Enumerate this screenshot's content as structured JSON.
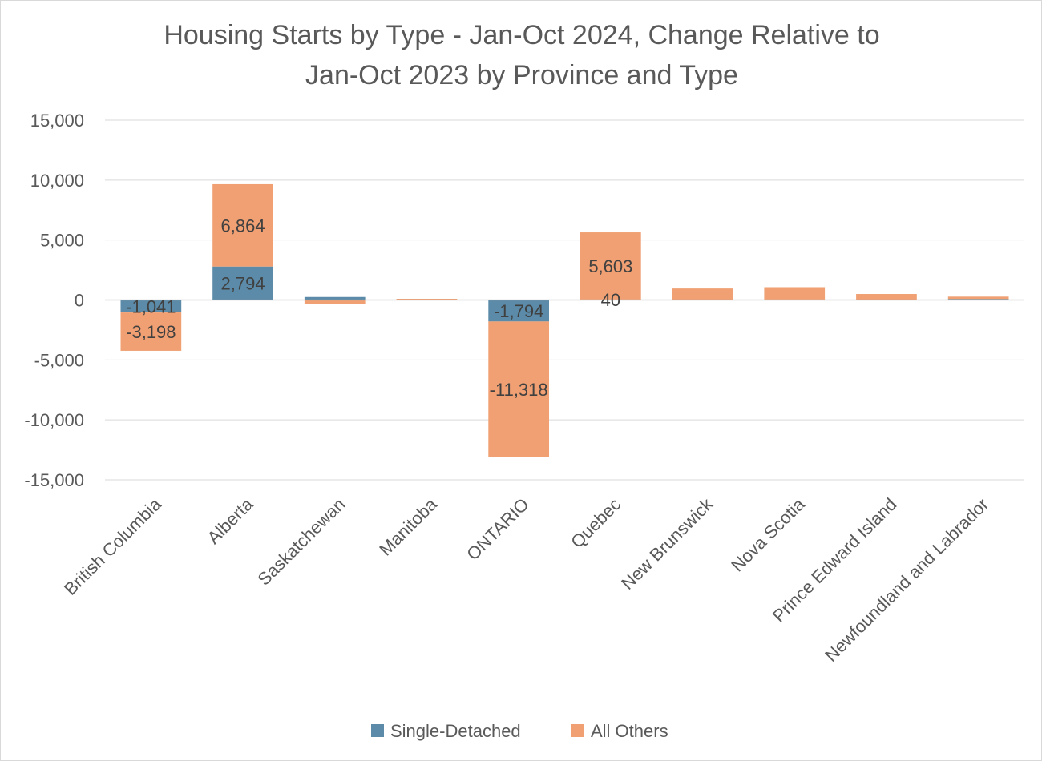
{
  "chart_data": {
    "type": "bar",
    "stacked": true,
    "title": "Housing Starts by Type - Jan-Oct 2024, Change Relative to Jan-Oct 2023 by Province and Type",
    "title_lines": [
      "Housing Starts by Type - Jan-Oct 2024, Change Relative to",
      "Jan-Oct 2023 by Province and Type"
    ],
    "categories": [
      "British Columbia",
      "Alberta",
      "Saskatchewan",
      "Manitoba",
      "ONTARIO",
      "Quebec",
      "New Brunswick",
      "Nova Scotia",
      "Prince Edward Island",
      "Newfoundland and Labrador"
    ],
    "series": [
      {
        "name": "Single-Detached",
        "color": "#5b8ba8",
        "values": [
          -1041,
          2794,
          250,
          20,
          -1794,
          40,
          30,
          40,
          20,
          80
        ],
        "labels": [
          "-1,041",
          "2,794",
          "",
          "",
          "-1,794",
          "40",
          "",
          "",
          "",
          ""
        ]
      },
      {
        "name": "All Others",
        "color": "#f0a073",
        "values": [
          -3198,
          6864,
          -300,
          80,
          -11318,
          5603,
          930,
          1030,
          480,
          200
        ],
        "labels": [
          "-3,198",
          "6,864",
          "",
          "",
          "-11,318",
          "5,603",
          "",
          "",
          "",
          ""
        ]
      }
    ],
    "ylim": [
      -15000,
      15000
    ],
    "yticks": [
      15000,
      10000,
      5000,
      0,
      -5000,
      -10000,
      -15000
    ],
    "ytick_labels": [
      "15,000",
      "10,000",
      "5,000",
      "0",
      "-5,000",
      "-10,000",
      "-15,000"
    ],
    "grid": true,
    "legend_position": "bottom"
  }
}
